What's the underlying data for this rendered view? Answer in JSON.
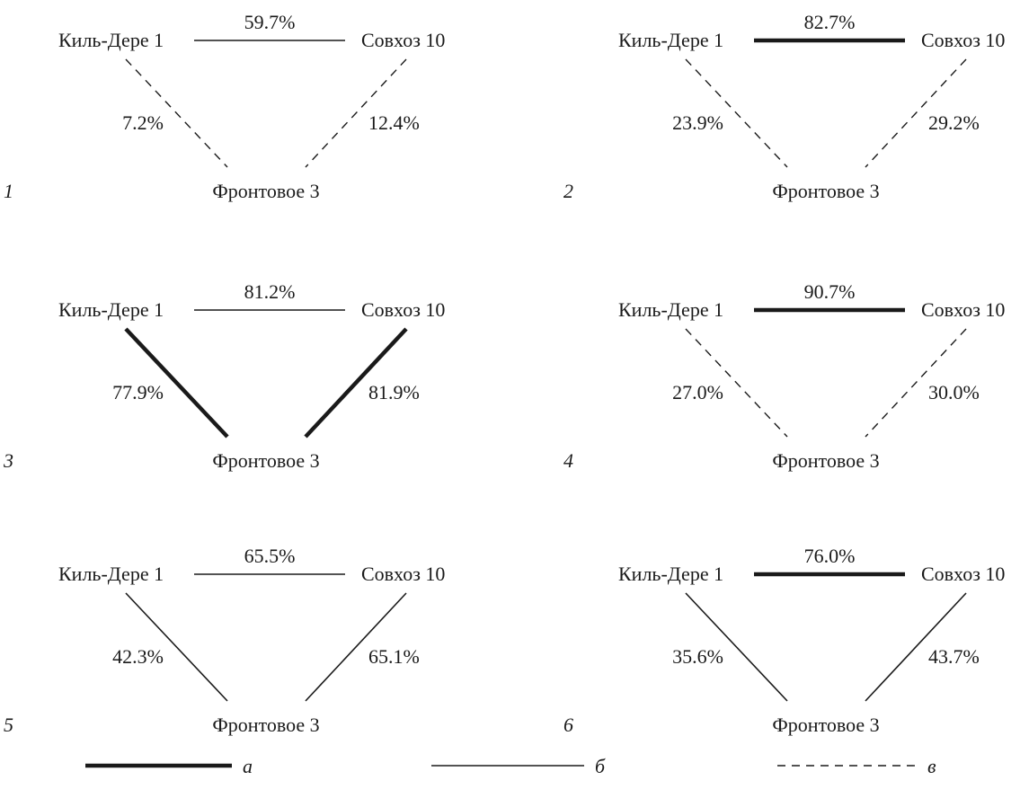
{
  "nodes": {
    "kil_dere": "Киль-Дере 1",
    "sovkhoz": "Совхоз 10",
    "frontovoe": "Фронтовое 3"
  },
  "panels": [
    {
      "number": "1",
      "top": {
        "label": "59.7%",
        "style": "thin"
      },
      "left": {
        "label": "7.2%",
        "style": "dashed"
      },
      "right": {
        "label": "12.4%",
        "style": "dashed"
      }
    },
    {
      "number": "2",
      "top": {
        "label": "82.7%",
        "style": "thick"
      },
      "left": {
        "label": "23.9%",
        "style": "dashed"
      },
      "right": {
        "label": "29.2%",
        "style": "dashed"
      }
    },
    {
      "number": "3",
      "top": {
        "label": "81.2%",
        "style": "thin"
      },
      "left": {
        "label": "77.9%",
        "style": "thick"
      },
      "right": {
        "label": "81.9%",
        "style": "thick"
      }
    },
    {
      "number": "4",
      "top": {
        "label": "90.7%",
        "style": "thick"
      },
      "left": {
        "label": "27.0%",
        "style": "dashed"
      },
      "right": {
        "label": "30.0%",
        "style": "dashed"
      }
    },
    {
      "number": "5",
      "top": {
        "label": "65.5%",
        "style": "thin"
      },
      "left": {
        "label": "42.3%",
        "style": "thin"
      },
      "right": {
        "label": "65.1%",
        "style": "thin"
      }
    },
    {
      "number": "6",
      "top": {
        "label": "76.0%",
        "style": "thick"
      },
      "left": {
        "label": "35.6%",
        "style": "thin"
      },
      "right": {
        "label": "43.7%",
        "style": "thin"
      }
    }
  ],
  "legend": [
    {
      "letter": "а",
      "style": "thick"
    },
    {
      "letter": "б",
      "style": "thin"
    },
    {
      "letter": "в",
      "style": "dashed"
    }
  ],
  "colors": {
    "ink": "#1a1a1a"
  }
}
